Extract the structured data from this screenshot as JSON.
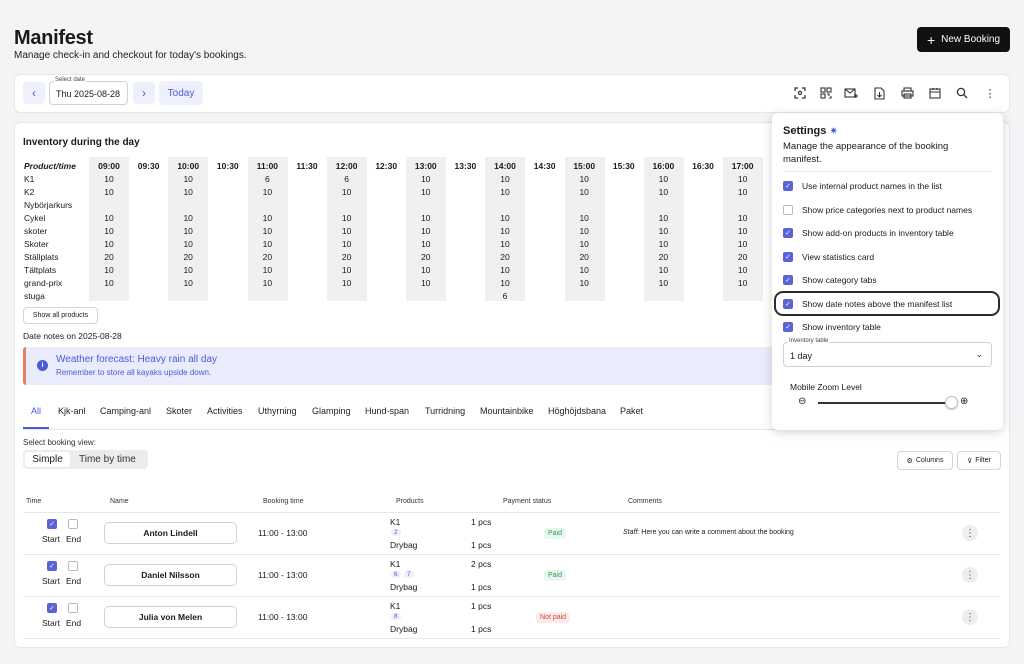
{
  "header": {
    "title": "Manifest",
    "subtitle": "Manage check-in and checkout for today's bookings.",
    "new_booking": "New Booking"
  },
  "toolbar": {
    "date_label": "Select date",
    "date_value": "Thu 2025-08-28",
    "today": "Today",
    "icons": [
      "scan-icon",
      "qr-icon",
      "mail-plus-icon",
      "file-download-icon",
      "print-icon",
      "calendar-icon",
      "search-icon",
      "more-vertical-icon"
    ]
  },
  "inventory": {
    "title": "Inventory during the day",
    "corner": "Product/time",
    "times": [
      "09:00",
      "09:30",
      "10:00",
      "10:30",
      "11:00",
      "11:30",
      "12:00",
      "12:30",
      "13:00",
      "13:30",
      "14:00",
      "14:30",
      "15:00",
      "15:30",
      "16:00",
      "16:30",
      "17:00"
    ],
    "rows": [
      {
        "name": "K1",
        "values": [
          "10",
          "",
          "10",
          "",
          "6",
          "",
          "6",
          "",
          "10",
          "",
          "10",
          "",
          "10",
          "",
          "10",
          "",
          "10"
        ]
      },
      {
        "name": "K2",
        "values": [
          "10",
          "",
          "10",
          "",
          "10",
          "",
          "10",
          "",
          "10",
          "",
          "10",
          "",
          "10",
          "",
          "10",
          "",
          "10"
        ]
      },
      {
        "name": "Nybörjarkurs",
        "values": [
          "",
          "",
          "",
          "",
          "",
          "",
          "",
          "",
          "",
          "",
          "",
          "",
          "",
          "",
          "",
          "",
          ""
        ]
      },
      {
        "name": "Cykel",
        "values": [
          "10",
          "",
          "10",
          "",
          "10",
          "",
          "10",
          "",
          "10",
          "",
          "10",
          "",
          "10",
          "",
          "10",
          "",
          "10"
        ]
      },
      {
        "name": "skoter",
        "values": [
          "10",
          "",
          "10",
          "",
          "10",
          "",
          "10",
          "",
          "10",
          "",
          "10",
          "",
          "10",
          "",
          "10",
          "",
          "10"
        ]
      },
      {
        "name": "Skoter",
        "values": [
          "10",
          "",
          "10",
          "",
          "10",
          "",
          "10",
          "",
          "10",
          "",
          "10",
          "",
          "10",
          "",
          "10",
          "",
          "10"
        ]
      },
      {
        "name": "Ställplats",
        "values": [
          "20",
          "",
          "20",
          "",
          "20",
          "",
          "20",
          "",
          "20",
          "",
          "20",
          "",
          "20",
          "",
          "20",
          "",
          "20"
        ]
      },
      {
        "name": "Tältplats",
        "values": [
          "10",
          "",
          "10",
          "",
          "10",
          "",
          "10",
          "",
          "10",
          "",
          "10",
          "",
          "10",
          "",
          "10",
          "",
          "10"
        ]
      },
      {
        "name": "grand-prix",
        "values": [
          "10",
          "",
          "10",
          "",
          "10",
          "",
          "10",
          "",
          "10",
          "",
          "10",
          "",
          "10",
          "",
          "10",
          "",
          "10"
        ]
      },
      {
        "name": "stuga",
        "values": [
          "",
          "",
          "",
          "",
          "",
          "",
          "",
          "",
          "",
          "",
          "6",
          "",
          "",
          "",
          "",
          "",
          ""
        ]
      }
    ],
    "show_all": "Show all products"
  },
  "date_notes": {
    "heading": "Date notes on 2025-08-28",
    "title": "Weather forecast: Heavy rain all day",
    "text": "Remember to store all kayaks upside down."
  },
  "tabs": [
    "All",
    "Kjk-anl",
    "Camping-anl",
    "Skoter",
    "Activities",
    "Uthyrning",
    "Glamping",
    "Hund-span",
    "Turridning",
    "Mountainbike",
    "Höghöjdsbana",
    "Paket"
  ],
  "view": {
    "label": "Select booking view:",
    "simple": "Simple",
    "by_time": "Time by time",
    "columns": "Columns",
    "filter": "Filter"
  },
  "table": {
    "headers": [
      "Time",
      "Name",
      "Booking time",
      "Products",
      "Payment status",
      "Comments"
    ],
    "start": "Start",
    "end": "End",
    "rows": [
      {
        "name": "Anton Lindell",
        "time": "11:00 - 13:00",
        "p1": "K1",
        "q1": "1 pcs",
        "chips": [
          "2"
        ],
        "p2": "Drybag",
        "q2": "1 pcs",
        "status": "Paid",
        "comment_author": "Staff:",
        "comment": "Here you can write a comment about the booking"
      },
      {
        "name": "Daniel Nilsson",
        "time": "11:00 - 13:00",
        "p1": "K1",
        "q1": "2 pcs",
        "chips": [
          "6",
          "7"
        ],
        "p2": "Drybag",
        "q2": "1 pcs",
        "status": "Paid",
        "comment_author": "",
        "comment": ""
      },
      {
        "name": "Julia von Melen",
        "time": "11:00 - 13:00",
        "p1": "K1",
        "q1": "1 pcs",
        "chips": [
          "8"
        ],
        "p2": "Drybag",
        "q2": "1 pcs",
        "status": "Not paid",
        "comment_author": "",
        "comment": ""
      }
    ]
  },
  "settings": {
    "title": "Settings",
    "description": "Manage the appearance of the booking manifest.",
    "options": [
      {
        "label": "Use internal product names in the list",
        "checked": true
      },
      {
        "label": "Show price categories next to product names",
        "checked": false
      },
      {
        "label": "Show add-on products in inventory table",
        "checked": true
      },
      {
        "label": "View statistics card",
        "checked": true
      },
      {
        "label": "Show category tabs",
        "checked": true
      },
      {
        "label": "Show date notes above the manifest list",
        "checked": true
      },
      {
        "label": "Show inventory table",
        "checked": true
      }
    ],
    "inventory_table_label": "Inventory table",
    "inventory_table_value": "1 day",
    "zoom_label": "Mobile Zoom Level",
    "zoom_level": 1.0
  },
  "colors": {
    "accent": "#4a5bd6",
    "paid": "#2f9e5b",
    "not_paid": "#d0453a",
    "dark": "#111111"
  }
}
